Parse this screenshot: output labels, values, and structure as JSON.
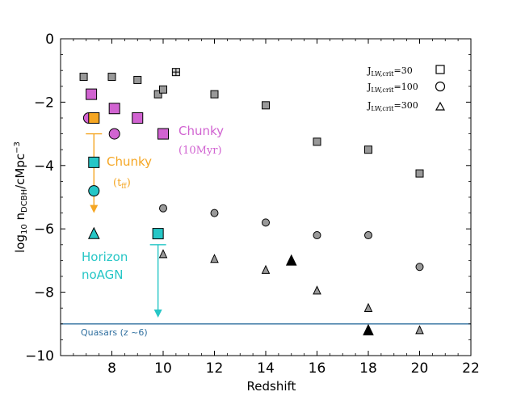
{
  "chart_data": {
    "type": "scatter",
    "title": "",
    "xlabel": "Redshift",
    "ylabel": "log10 nDCBH/cMpc^-3",
    "xlim": [
      6,
      22
    ],
    "ylim": [
      -10,
      0
    ],
    "xticks": [
      8,
      10,
      12,
      14,
      16,
      18,
      20,
      22
    ],
    "yticks": [
      0,
      -2,
      -4,
      -6,
      -8,
      -10
    ],
    "grid": false,
    "legend_placement": "top-right",
    "legend": [
      {
        "label": "J_LW,crit=30",
        "marker": "square"
      },
      {
        "label": "J_LW,crit=100",
        "marker": "circle"
      },
      {
        "label": "J_LW,crit=300",
        "marker": "triangle"
      }
    ],
    "series": [
      {
        "name": "J_LW,crit=30",
        "marker": "square",
        "color": "#999999",
        "points": [
          [
            6.9,
            -1.2
          ],
          [
            8.0,
            -1.2
          ],
          [
            9.0,
            -1.3
          ],
          [
            9.8,
            -1.75
          ],
          [
            10.0,
            -1.6
          ],
          [
            12.0,
            -1.75
          ],
          [
            14.0,
            -2.1
          ],
          [
            16.0,
            -3.25
          ],
          [
            18.0,
            -3.5
          ],
          [
            20.0,
            -4.25
          ]
        ]
      },
      {
        "name": "J_LW,crit=30 (hatched)",
        "marker": "hatched-square",
        "color": "#cccccc",
        "points": [
          [
            10.5,
            -1.05
          ]
        ]
      },
      {
        "name": "J_LW,crit=100",
        "marker": "circle",
        "color": "#999999",
        "points": [
          [
            10.0,
            -5.35
          ],
          [
            12.0,
            -5.5
          ],
          [
            14.0,
            -5.8
          ],
          [
            16.0,
            -6.2
          ],
          [
            18.0,
            -6.2
          ],
          [
            20.0,
            -7.2
          ]
        ]
      },
      {
        "name": "J_LW,crit=300",
        "marker": "triangle",
        "color": "#999999",
        "points": [
          [
            10.0,
            -6.8
          ],
          [
            12.0,
            -6.95
          ],
          [
            14.0,
            -7.3
          ],
          [
            16.0,
            -7.95
          ],
          [
            18.0,
            -8.5
          ],
          [
            20.0,
            -9.2
          ]
        ]
      },
      {
        "name": "J_LW,crit=300 (black)",
        "marker": "triangle",
        "color": "#000000",
        "points": [
          [
            15.0,
            -7.0
          ],
          [
            18.0,
            -9.2
          ]
        ]
      },
      {
        "name": "Chunky (10Myr)",
        "color": "#d163d1",
        "points": [
          {
            "x": 7.2,
            "y": -1.75,
            "marker": "square"
          },
          {
            "x": 8.1,
            "y": -2.2,
            "marker": "square"
          },
          {
            "x": 9.0,
            "y": -2.5,
            "marker": "square"
          },
          {
            "x": 10.0,
            "y": -3.0,
            "marker": "square"
          },
          {
            "x": 7.1,
            "y": -2.5,
            "marker": "circle"
          },
          {
            "x": 8.1,
            "y": -3.0,
            "marker": "circle"
          }
        ]
      },
      {
        "name": "Chunky (t_ff)",
        "color": "#f5a623",
        "points": [
          {
            "x": 7.3,
            "y": -2.5,
            "marker": "square"
          }
        ],
        "upper_limit": {
          "x": 7.3,
          "from": -3.0,
          "to": -5.5
        }
      },
      {
        "name": "Horizon noAGN",
        "color": "#26c6c6",
        "points": [
          {
            "x": 7.3,
            "y": -3.9,
            "marker": "square"
          },
          {
            "x": 7.3,
            "y": -4.8,
            "marker": "circle"
          },
          {
            "x": 7.3,
            "y": -6.15,
            "marker": "triangle"
          },
          {
            "x": 9.8,
            "y": -6.15,
            "marker": "square"
          }
        ],
        "upper_limit": {
          "x": 9.8,
          "from": -6.5,
          "to": -8.8
        }
      }
    ],
    "hline": {
      "y": -9.0,
      "color": "#2f6f9f",
      "label": "Quasars (z ~6)"
    },
    "annotations": [
      {
        "text": "Chunky",
        "color": "#f5a623"
      },
      {
        "text": "(t_ff)",
        "color": "#f5a623"
      },
      {
        "text": "Chunky",
        "color": "#d163d1"
      },
      {
        "text": "(10Myr)",
        "color": "#d163d1"
      },
      {
        "text": "Horizon",
        "color": "#26c6c6"
      },
      {
        "text": "noAGN",
        "color": "#26c6c6"
      }
    ]
  }
}
